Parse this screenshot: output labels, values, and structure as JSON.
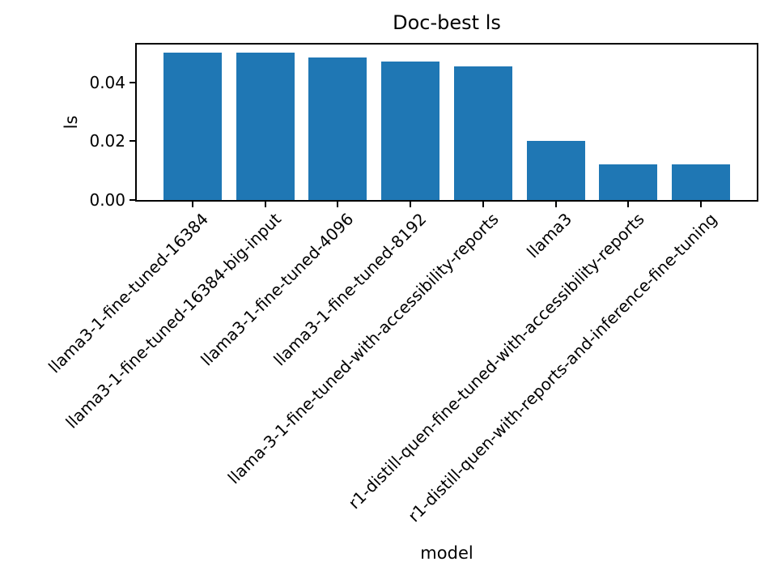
{
  "chart_data": {
    "type": "bar",
    "title": "Doc-best ls",
    "xlabel": "model",
    "ylabel": "ls",
    "categories": [
      "llama3-1-fine-tuned-16384",
      "llama3-1-fine-tuned-16384-big-input",
      "llama3-1-fine-tuned-4096",
      "llama3-1-fine-tuned-8192",
      "llama-3-1-fine-tuned-with-accessibility-reports",
      "llama3",
      "r1-distill-quen-fine-tuned-with-accessibility-reports",
      "r1-distill-quen-with-reports-and-inference-fine-tuning"
    ],
    "values": [
      0.05,
      0.05,
      0.0485,
      0.047,
      0.0455,
      0.02,
      0.012,
      0.012
    ],
    "ylim": [
      0,
      0.0528
    ],
    "ytick_labels": [
      "0.00",
      "0.02",
      "0.04"
    ],
    "ytick_values": [
      0.0,
      0.02,
      0.04
    ],
    "bar_color": "#1f77b4",
    "grid": false,
    "legend": null,
    "xtick_rotation_deg": 45
  }
}
